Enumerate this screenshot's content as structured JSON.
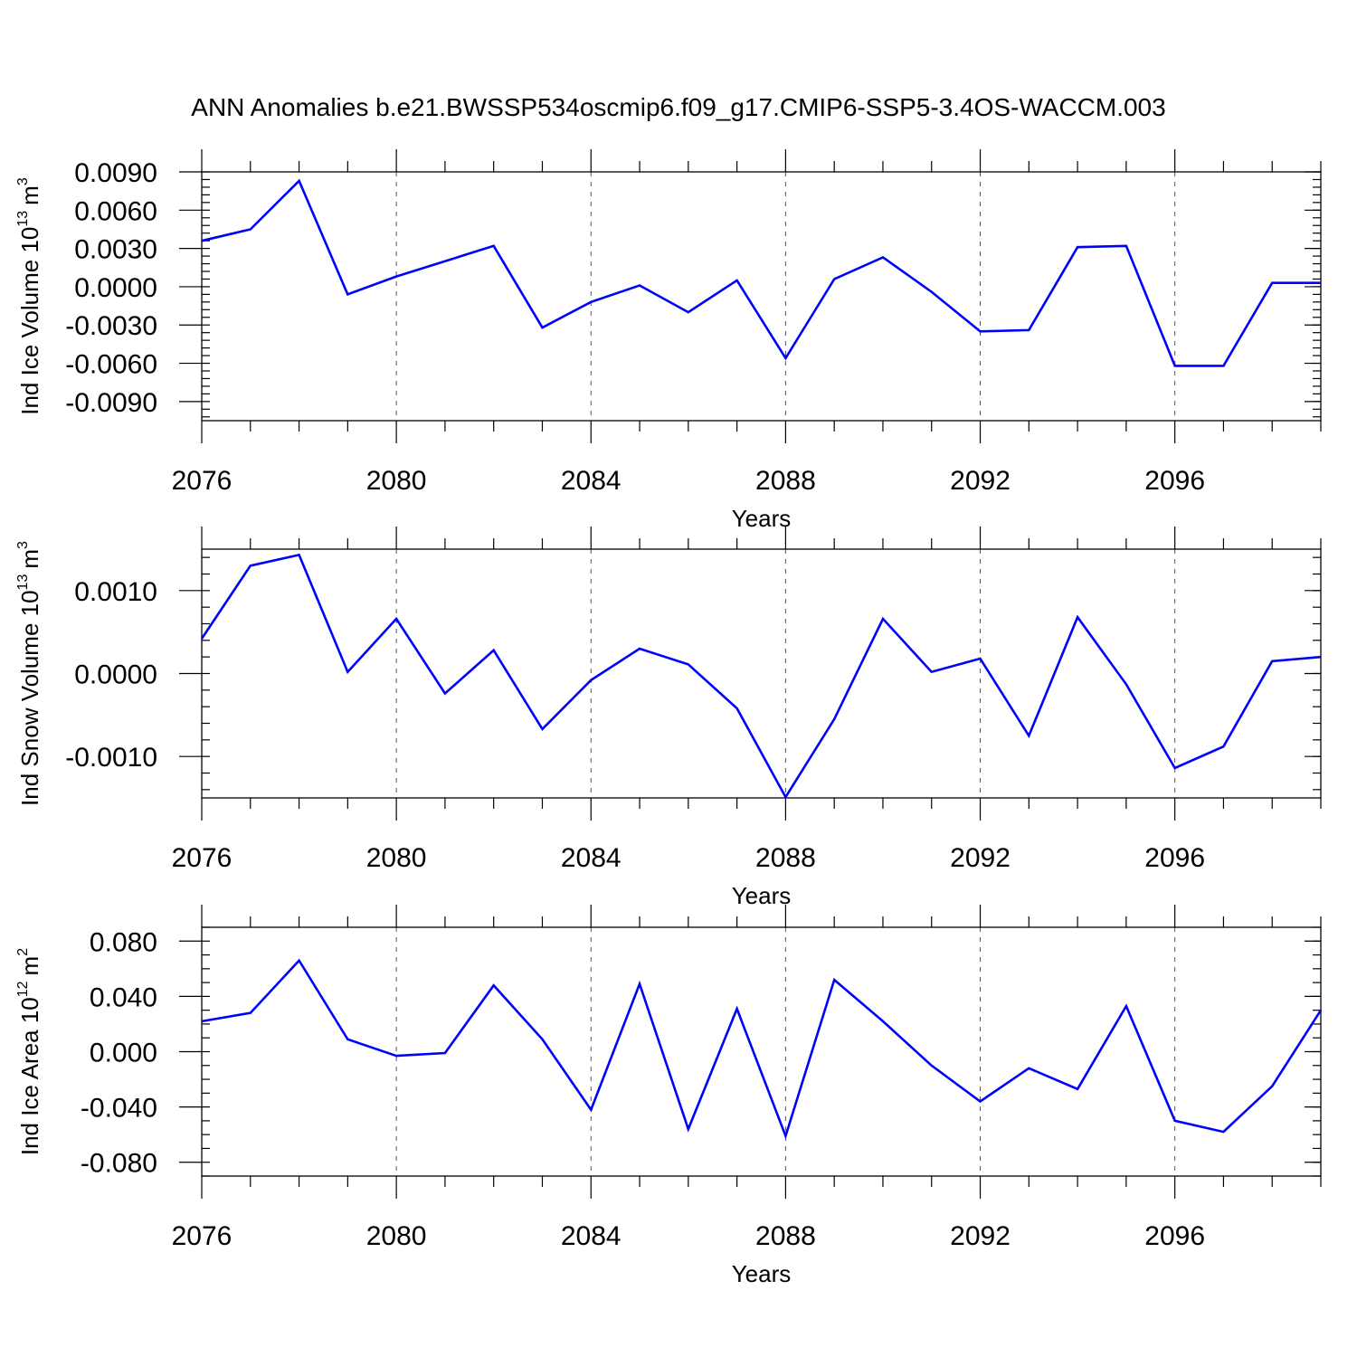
{
  "title": "ANN Anomalies b.e21.BWSSP534oscmip6.f09_g17.CMIP6-SSP5-3.4OS-WACCM.003",
  "chart_data": [
    {
      "type": "line",
      "ylabel": "Ind Ice Volume 10",
      "ylabel_sup": "13",
      "ylabel_unit": "m",
      "ylabel_unit_sup": "3",
      "xlabel": "Years",
      "xlim": [
        2076,
        2099
      ],
      "ylim": [
        -0.0105,
        0.009
      ],
      "major_xticks": [
        2076,
        2080,
        2084,
        2088,
        2092,
        2096
      ],
      "xtick_labels": [
        "2076",
        "2080",
        "2084",
        "2088",
        "2092",
        "2096"
      ],
      "yticks": [
        0.009,
        0.006,
        0.003,
        0.0,
        -0.003,
        -0.006,
        -0.009
      ],
      "ytick_labels": [
        "0.0090",
        "0.0060",
        "0.0030",
        "0.0000",
        "-0.0030",
        "-0.0060",
        "-0.0090"
      ],
      "minor_ystep": 0.0006,
      "series": [
        {
          "name": "Ind Ice Volume",
          "color": "#0000ff",
          "x": [
            2076,
            2077,
            2078,
            2079,
            2080,
            2081,
            2082,
            2083,
            2084,
            2085,
            2086,
            2087,
            2088,
            2089,
            2090,
            2091,
            2092,
            2093,
            2094,
            2095,
            2096,
            2097,
            2098,
            2099
          ],
          "values": [
            0.0036,
            0.0045,
            0.0083,
            -0.0006,
            0.0008,
            0.002,
            0.0032,
            -0.0032,
            -0.0012,
            0.0001,
            -0.002,
            0.0005,
            -0.0056,
            0.0006,
            0.0023,
            -0.0004,
            -0.0035,
            -0.0034,
            0.0031,
            0.0032,
            -0.0062,
            -0.0062,
            0.0003,
            0.0003
          ]
        }
      ]
    },
    {
      "type": "line",
      "ylabel": "Ind Snow Volume 10",
      "ylabel_sup": "13",
      "ylabel_unit": "m",
      "ylabel_unit_sup": "3",
      "xlabel": "Years",
      "xlim": [
        2076,
        2099
      ],
      "ylim": [
        -0.0015,
        0.0015
      ],
      "major_xticks": [
        2076,
        2080,
        2084,
        2088,
        2092,
        2096
      ],
      "xtick_labels": [
        "2076",
        "2080",
        "2084",
        "2088",
        "2092",
        "2096"
      ],
      "yticks": [
        0.001,
        0.0,
        -0.001
      ],
      "ytick_labels": [
        "0.0010",
        "0.0000",
        "-0.0010"
      ],
      "minor_ystep": 0.0002,
      "series": [
        {
          "name": "Ind Snow Volume",
          "color": "#0000ff",
          "x": [
            2076,
            2077,
            2078,
            2079,
            2080,
            2081,
            2082,
            2083,
            2084,
            2085,
            2086,
            2087,
            2088,
            2089,
            2090,
            2091,
            2092,
            2093,
            2094,
            2095,
            2096,
            2097,
            2098,
            2099
          ],
          "values": [
            0.00042,
            0.0013,
            0.00143,
            2e-05,
            0.00066,
            -0.00024,
            0.00028,
            -0.00067,
            -8e-05,
            0.0003,
            0.00011,
            -0.00042,
            -0.00149,
            -0.00055,
            0.00066,
            2e-05,
            0.00018,
            -0.00075,
            0.00068,
            -0.00013,
            -0.00114,
            -0.00088,
            0.00015,
            0.0002
          ]
        }
      ]
    },
    {
      "type": "line",
      "ylabel": "Ind Ice Area 10",
      "ylabel_sup": "12",
      "ylabel_unit": "m",
      "ylabel_unit_sup": "2",
      "xlabel": "Years",
      "xlim": [
        2076,
        2099
      ],
      "ylim": [
        -0.09,
        0.09
      ],
      "major_xticks": [
        2076,
        2080,
        2084,
        2088,
        2092,
        2096
      ],
      "xtick_labels": [
        "2076",
        "2080",
        "2084",
        "2088",
        "2092",
        "2096"
      ],
      "yticks": [
        0.08,
        0.04,
        0.0,
        -0.04,
        -0.08
      ],
      "ytick_labels": [
        "0.080",
        "0.040",
        "0.000",
        "-0.040",
        "-0.080"
      ],
      "minor_ystep": 0.01,
      "series": [
        {
          "name": "Ind Ice Area",
          "color": "#0000ff",
          "x": [
            2076,
            2077,
            2078,
            2079,
            2080,
            2081,
            2082,
            2083,
            2084,
            2085,
            2086,
            2087,
            2088,
            2089,
            2090,
            2091,
            2092,
            2093,
            2094,
            2095,
            2096,
            2097,
            2098,
            2099
          ],
          "values": [
            0.022,
            0.028,
            0.066,
            0.009,
            -0.003,
            -0.001,
            0.048,
            0.009,
            -0.042,
            0.049,
            -0.056,
            0.031,
            -0.061,
            0.052,
            0.022,
            -0.01,
            -0.036,
            -0.012,
            -0.027,
            0.033,
            -0.05,
            -0.058,
            -0.025,
            0.03
          ]
        }
      ]
    }
  ]
}
